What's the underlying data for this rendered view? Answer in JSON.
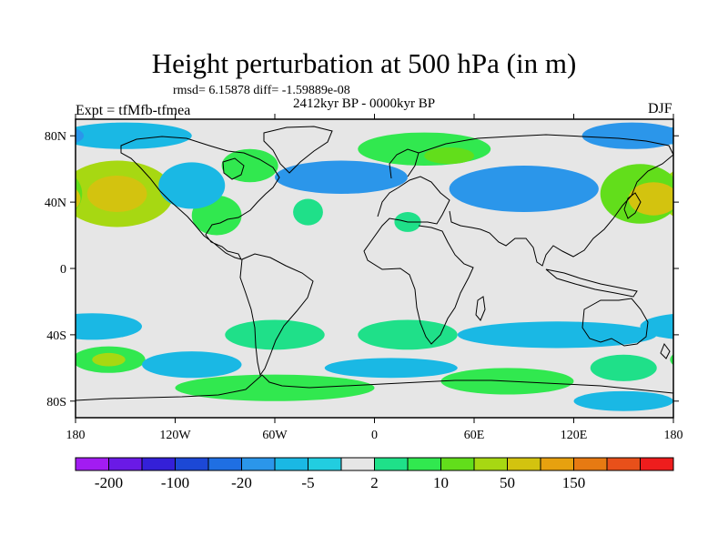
{
  "title": "Height perturbation at 500 hPa (in m)",
  "stats": "rmsd= 6.15878 diff= -1.59889e-08",
  "period": "2412kyr BP - 0000kyr BP",
  "experiment": "Expt = tfMfb-tfmea",
  "season": "DJF",
  "axes": {
    "lat_ticks": [
      {
        "value": 80,
        "label": "80N"
      },
      {
        "value": 40,
        "label": "40N"
      },
      {
        "value": 0,
        "label": "0"
      },
      {
        "value": -40,
        "label": "40S"
      },
      {
        "value": -80,
        "label": "80S"
      }
    ],
    "lon_ticks": [
      {
        "value": -180,
        "label": "180"
      },
      {
        "value": -120,
        "label": "120W"
      },
      {
        "value": -60,
        "label": "60W"
      },
      {
        "value": 0,
        "label": "0"
      },
      {
        "value": 60,
        "label": "60E"
      },
      {
        "value": 120,
        "label": "120E"
      },
      {
        "value": 180,
        "label": "180"
      }
    ],
    "lat_range": [
      -90,
      90
    ],
    "lon_range": [
      -180,
      180
    ]
  },
  "colorbar": {
    "colors": [
      "#a21cf2",
      "#6a1ae6",
      "#3420d8",
      "#1c48d6",
      "#1f6fe3",
      "#2b96ea",
      "#1ab8e4",
      "#22cde0",
      "#e6e6e6",
      "#1fe089",
      "#31e84f",
      "#62de1b",
      "#a7d812",
      "#d3c30f",
      "#e7a10f",
      "#e77a12",
      "#e8501a",
      "#ee1d1d"
    ],
    "labels": [
      {
        "after_box": 1,
        "text": "-200"
      },
      {
        "after_box": 3,
        "text": "-100"
      },
      {
        "after_box": 5,
        "text": "-20"
      },
      {
        "after_box": 7,
        "text": "-5"
      },
      {
        "after_box": 9,
        "text": "2"
      },
      {
        "after_box": 11,
        "text": "10"
      },
      {
        "after_box": 13,
        "text": "50"
      },
      {
        "after_box": 15,
        "text": "150"
      }
    ]
  },
  "chart_data": {
    "type": "heatmap",
    "title": "Height perturbation at 500 hPa (in m)",
    "variable": "Height perturbation at 500 hPa",
    "units": "m",
    "season": "DJF",
    "background_level": "-2 to 2 (near zero, light grey)",
    "anomalies": [
      {
        "lon": -155,
        "lat": 45,
        "rlon": 34,
        "rlat": 20,
        "level": 12,
        "region": "North Pacific (positive)"
      },
      {
        "lon": -155,
        "lat": 45,
        "rlon": 18,
        "rlat": 11,
        "level": 13,
        "region": "North Pacific core"
      },
      {
        "lon": -95,
        "lat": 32,
        "rlon": 15,
        "rlat": 12,
        "level": 10,
        "region": "Gulf of Mexico (positive)"
      },
      {
        "lon": -75,
        "lat": 62,
        "rlon": 17,
        "rlat": 10,
        "level": 10,
        "region": "Hudson Bay (positive)"
      },
      {
        "lon": -40,
        "lat": 34,
        "rlon": 9,
        "rlat": 8,
        "level": 9,
        "region": "Central North Atlantic (positive)"
      },
      {
        "lon": 30,
        "lat": 72,
        "rlon": 40,
        "rlat": 10,
        "level": 10,
        "region": "Scandinavia-Siberia (positive)"
      },
      {
        "lon": 45,
        "lat": 68,
        "rlon": 15,
        "rlat": 5,
        "level": 11,
        "region": "Barents Sea (positive)"
      },
      {
        "lon": 160,
        "lat": 45,
        "rlon": 24,
        "rlat": 18,
        "level": 11,
        "region": "Kamchatka / NW Pacific (positive)"
      },
      {
        "lon": 168,
        "lat": 42,
        "rlon": 15,
        "rlat": 10,
        "level": 13,
        "region": "NW Pacific core"
      },
      {
        "lon": 20,
        "lat": 28,
        "rlon": 8,
        "rlat": 6,
        "level": 9,
        "region": "Saharan (positive)"
      },
      {
        "lon": 20,
        "lat": -40,
        "rlon": 30,
        "rlat": 9,
        "level": 9,
        "region": "South Africa (positive)"
      },
      {
        "lon": -60,
        "lat": -40,
        "rlon": 30,
        "rlat": 9,
        "level": 9,
        "region": "South America (positive)"
      },
      {
        "lon": -60,
        "lat": -72,
        "rlon": 60,
        "rlat": 8,
        "level": 10,
        "region": "Southern Ocean Atlantic (positive)"
      },
      {
        "lon": 80,
        "lat": -68,
        "rlon": 40,
        "rlat": 8,
        "level": 10,
        "region": "Southern Ocean Indian (positive)"
      },
      {
        "lon": 150,
        "lat": -60,
        "rlon": 20,
        "rlat": 8,
        "level": 9,
        "region": "Southern Ocean Pacific (positive)"
      },
      {
        "lon": -160,
        "lat": -55,
        "rlon": 22,
        "rlat": 8,
        "level": 10,
        "region": "South Pacific (positive)"
      },
      {
        "lon": -160,
        "lat": -55,
        "rlon": 10,
        "rlat": 4,
        "level": 12,
        "region": "South Pacific core"
      },
      {
        "lon": -150,
        "lat": 80,
        "rlon": 40,
        "rlat": 8,
        "level": 6,
        "region": "Arctic Pacific (negative)"
      },
      {
        "lon": -110,
        "lat": 50,
        "rlon": 20,
        "rlat": 14,
        "level": 6,
        "region": "Western North America (negative)"
      },
      {
        "lon": -20,
        "lat": 55,
        "rlon": 40,
        "rlat": 10,
        "level": 5,
        "region": "North Atlantic (negative)"
      },
      {
        "lon": 90,
        "lat": 48,
        "rlon": 45,
        "rlat": 14,
        "level": 5,
        "region": "Central Asia (negative)"
      },
      {
        "lon": 155,
        "lat": 80,
        "rlon": 30,
        "rlat": 8,
        "level": 5,
        "region": "Arctic East Siberia (negative)"
      },
      {
        "lon": -170,
        "lat": -35,
        "rlon": 30,
        "rlat": 8,
        "level": 6,
        "region": "Subtropical South Pacific (negative)"
      },
      {
        "lon": 110,
        "lat": -40,
        "rlon": 60,
        "rlat": 8,
        "level": 6,
        "region": "South Indian Ocean (negative)"
      },
      {
        "lon": -110,
        "lat": -58,
        "rlon": 30,
        "rlat": 8,
        "level": 6,
        "region": "South Pacific (negative)"
      },
      {
        "lon": 10,
        "lat": -60,
        "rlon": 40,
        "rlat": 6,
        "level": 6,
        "region": "South Atlantic (negative)"
      },
      {
        "lon": 150,
        "lat": -80,
        "rlon": 30,
        "rlat": 6,
        "level": 6,
        "region": "Antarctic (negative)"
      }
    ]
  }
}
